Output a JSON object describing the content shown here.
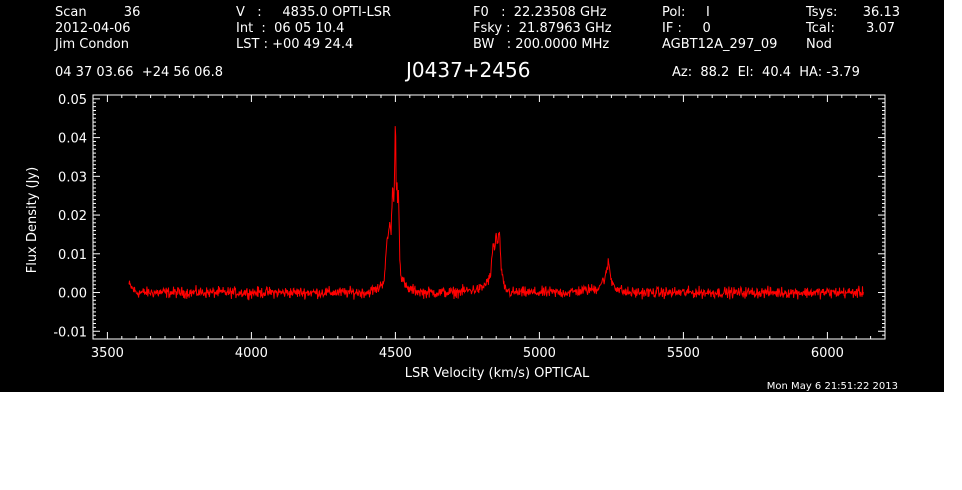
{
  "header": {
    "col1": [
      "Scan         36",
      "2012-04-06",
      "Jim Condon"
    ],
    "col2": [
      "V   :     4835.0 OPTI-LSR",
      "Int  :  06 05 10.4",
      "LST : +00 49 24.4"
    ],
    "col3": [
      "F0   :  22.23508 GHz",
      "Fsky :  21.87963 GHz",
      "BW   : 200.0000 MHz"
    ],
    "col4": [
      "Pol:     I",
      "IF :     0",
      "AGBT12A_297_09"
    ],
    "col5_labels": [
      "Tsys:",
      "Tcal:",
      "Nod"
    ],
    "col5_values": [
      "36.13",
      "3.07",
      ""
    ],
    "coords": "04 37 03.66  +24 56 06.8",
    "source": "J0437+2456",
    "pointing": "Az:  88.2  El:  40.4  HA: -3.79",
    "timestamp": "Mon May  6 21:51:22 2013"
  },
  "chart_data": {
    "type": "line",
    "xlabel": "LSR Velocity (km/s) OPTICAL",
    "ylabel": "Flux Density (Jy)",
    "xlim": [
      3450,
      6200
    ],
    "ylim": [
      -0.012,
      0.051
    ],
    "xticks": [
      3500,
      4000,
      4500,
      5000,
      5500,
      6000
    ],
    "yticks": [
      -0.01,
      0.0,
      0.01,
      0.02,
      0.03,
      0.04,
      0.05
    ],
    "ytick_labels": [
      "-0.01",
      "0.00",
      "0.01",
      "0.02",
      "0.03",
      "0.04",
      "0.05"
    ],
    "grid": false,
    "color": "#ff0000",
    "noise_rms": 0.001,
    "series": [
      {
        "x": [
          3575,
          3600,
          3700,
          3800,
          3900,
          4000,
          4100,
          4200,
          4300,
          4400,
          4440,
          4460,
          4470,
          4480,
          4485,
          4490,
          4495,
          4500,
          4503,
          4505,
          4508,
          4510,
          4515,
          4520,
          4540,
          4600,
          4700,
          4800,
          4830,
          4840,
          4845,
          4850,
          4855,
          4860,
          4865,
          4870,
          4880,
          4900,
          5000,
          5100,
          5200,
          5230,
          5240,
          5250,
          5270,
          5300,
          5400,
          5500,
          5600,
          5700,
          5800,
          5900,
          6000,
          6100,
          6125
        ],
        "y": [
          0.002,
          0.0,
          0.0,
          0.0,
          0.0,
          0.0,
          0.0,
          0.0,
          0.0,
          0.0,
          0.001,
          0.003,
          0.012,
          0.018,
          0.015,
          0.028,
          0.022,
          0.046,
          0.025,
          0.03,
          0.022,
          0.028,
          0.01,
          0.004,
          0.001,
          0.0,
          0.0,
          0.001,
          0.004,
          0.013,
          0.011,
          0.015,
          0.012,
          0.016,
          0.01,
          0.004,
          0.001,
          0.0,
          0.0,
          0.0,
          0.001,
          0.004,
          0.008,
          0.003,
          0.001,
          0.0,
          0.0,
          0.0,
          0.0,
          0.0,
          0.0,
          0.0,
          0.0,
          0.0,
          0.0
        ]
      }
    ]
  }
}
